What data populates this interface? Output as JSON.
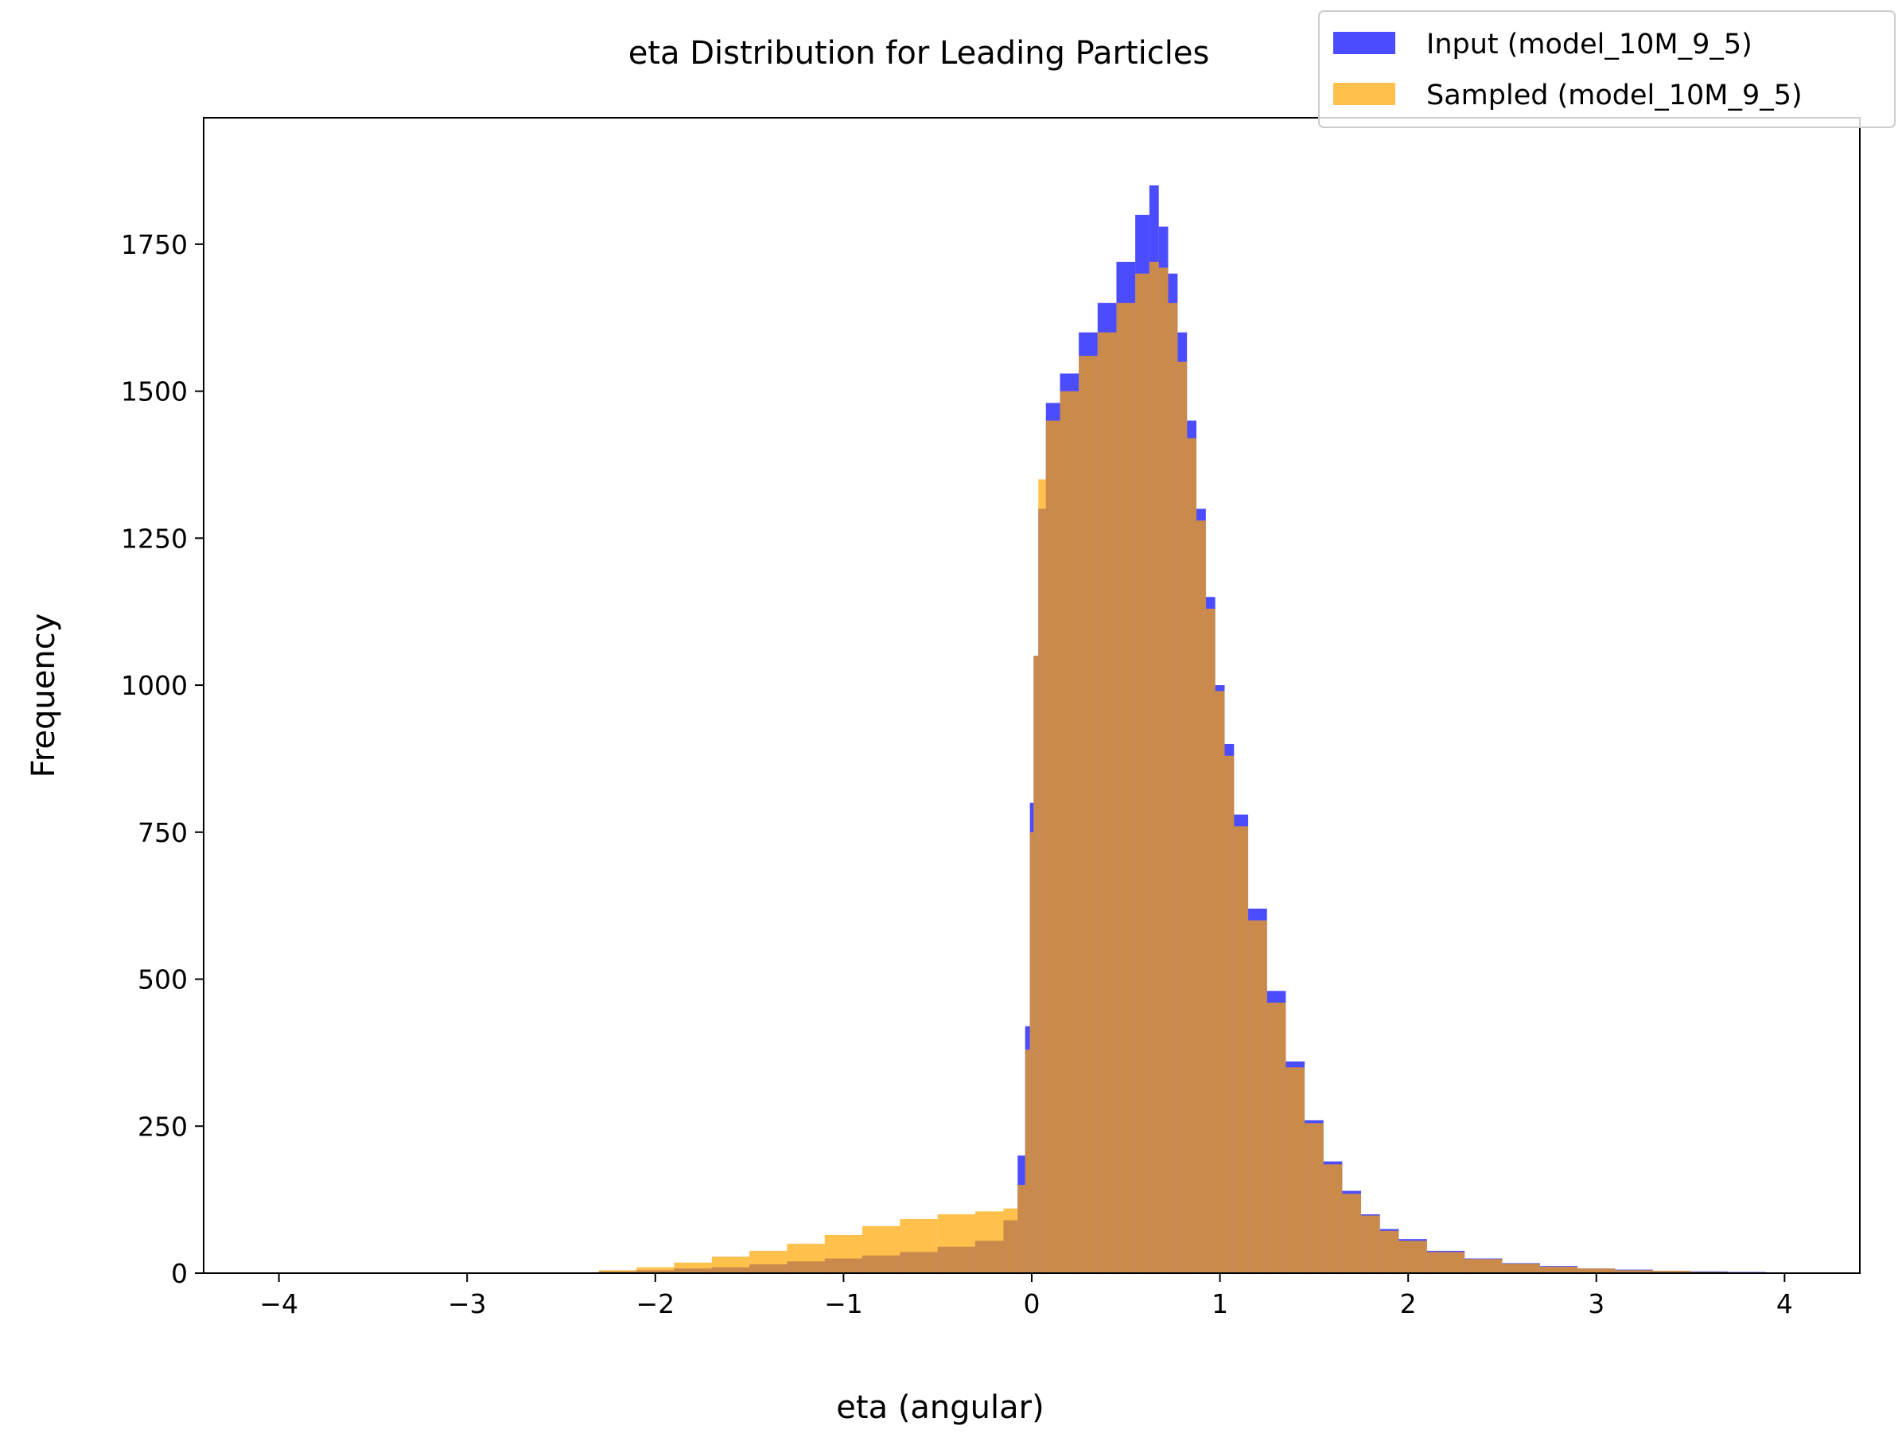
{
  "chart_data": {
    "type": "histogram",
    "title": "eta Distribution for Leading Particles",
    "xlabel": "eta (angular)",
    "ylabel": "Frequency",
    "xlim": [
      -4.4,
      4.4
    ],
    "ylim": [
      0,
      1965
    ],
    "x_ticks": [
      -4,
      -3,
      -2,
      -1,
      0,
      1,
      2,
      3,
      4
    ],
    "x_tick_labels": [
      "−4",
      "−3",
      "−2",
      "−1",
      "0",
      "1",
      "2",
      "3",
      "4"
    ],
    "y_ticks": [
      0,
      250,
      500,
      750,
      1000,
      1250,
      1500,
      1750
    ],
    "y_tick_labels": [
      "0",
      "250",
      "500",
      "750",
      "1000",
      "1250",
      "1500",
      "1750"
    ],
    "grid": false,
    "legend_position": "top-right",
    "series": [
      {
        "name": "Input (model_10M_9_5)",
        "color": "#0000ff",
        "opacity": 0.7,
        "bins": [
          [
            -2.2,
            3
          ],
          [
            -2.0,
            5
          ],
          [
            -1.8,
            8
          ],
          [
            -1.6,
            10
          ],
          [
            -1.4,
            15
          ],
          [
            -1.2,
            20
          ],
          [
            -1.0,
            25
          ],
          [
            -0.8,
            30
          ],
          [
            -0.6,
            36
          ],
          [
            -0.4,
            45
          ],
          [
            -0.2,
            55
          ],
          [
            -0.1,
            90
          ],
          [
            -0.05,
            200
          ],
          [
            -0.02,
            420
          ],
          [
            0.0,
            800
          ],
          [
            0.02,
            1050
          ],
          [
            0.05,
            1300
          ],
          [
            0.1,
            1480
          ],
          [
            0.2,
            1530
          ],
          [
            0.3,
            1600
          ],
          [
            0.4,
            1650
          ],
          [
            0.5,
            1720
          ],
          [
            0.6,
            1800
          ],
          [
            0.65,
            1850
          ],
          [
            0.7,
            1780
          ],
          [
            0.75,
            1700
          ],
          [
            0.8,
            1600
          ],
          [
            0.85,
            1450
          ],
          [
            0.9,
            1300
          ],
          [
            0.95,
            1150
          ],
          [
            1.0,
            1000
          ],
          [
            1.05,
            900
          ],
          [
            1.1,
            780
          ],
          [
            1.2,
            620
          ],
          [
            1.3,
            480
          ],
          [
            1.4,
            360
          ],
          [
            1.5,
            260
          ],
          [
            1.6,
            190
          ],
          [
            1.7,
            140
          ],
          [
            1.8,
            100
          ],
          [
            1.9,
            75
          ],
          [
            2.0,
            58
          ],
          [
            2.2,
            38
          ],
          [
            2.4,
            25
          ],
          [
            2.6,
            17
          ],
          [
            2.8,
            12
          ],
          [
            3.0,
            8
          ],
          [
            3.2,
            6
          ],
          [
            3.4,
            4
          ],
          [
            3.6,
            3
          ],
          [
            3.8,
            2
          ],
          [
            4.0,
            1
          ]
        ]
      },
      {
        "name": "Sampled (model_10M_9_5)",
        "color": "#ffa500",
        "opacity": 0.7,
        "bins": [
          [
            -2.2,
            5
          ],
          [
            -2.0,
            10
          ],
          [
            -1.8,
            18
          ],
          [
            -1.6,
            28
          ],
          [
            -1.4,
            38
          ],
          [
            -1.2,
            50
          ],
          [
            -1.0,
            65
          ],
          [
            -0.8,
            80
          ],
          [
            -0.6,
            92
          ],
          [
            -0.4,
            100
          ],
          [
            -0.2,
            105
          ],
          [
            -0.1,
            110
          ],
          [
            -0.05,
            150
          ],
          [
            -0.02,
            380
          ],
          [
            0.0,
            750
          ],
          [
            0.02,
            1050
          ],
          [
            0.05,
            1350
          ],
          [
            0.1,
            1450
          ],
          [
            0.2,
            1500
          ],
          [
            0.3,
            1560
          ],
          [
            0.4,
            1600
          ],
          [
            0.5,
            1650
          ],
          [
            0.6,
            1700
          ],
          [
            0.65,
            1720
          ],
          [
            0.7,
            1710
          ],
          [
            0.75,
            1650
          ],
          [
            0.8,
            1550
          ],
          [
            0.85,
            1420
          ],
          [
            0.9,
            1280
          ],
          [
            0.95,
            1130
          ],
          [
            1.0,
            990
          ],
          [
            1.05,
            880
          ],
          [
            1.1,
            760
          ],
          [
            1.2,
            600
          ],
          [
            1.3,
            460
          ],
          [
            1.4,
            350
          ],
          [
            1.5,
            255
          ],
          [
            1.6,
            185
          ],
          [
            1.7,
            135
          ],
          [
            1.8,
            98
          ],
          [
            1.9,
            72
          ],
          [
            2.0,
            55
          ],
          [
            2.2,
            36
          ],
          [
            2.4,
            24
          ],
          [
            2.6,
            16
          ],
          [
            2.8,
            11
          ],
          [
            3.0,
            8
          ],
          [
            3.2,
            5
          ],
          [
            3.4,
            4
          ],
          [
            3.6,
            2
          ],
          [
            3.8,
            1
          ],
          [
            4.0,
            1
          ]
        ]
      }
    ]
  }
}
